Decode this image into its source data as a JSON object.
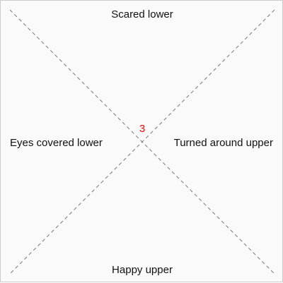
{
  "labels": {
    "top": "Scared lower",
    "bottom": "Happy upper",
    "left": "Eyes covered lower",
    "right": "Turned around upper"
  },
  "center_count": "3",
  "colors": {
    "background": "#fafafa",
    "border": "#cccccc",
    "line": "#777777",
    "text": "#111111",
    "count": "#ff0000"
  }
}
